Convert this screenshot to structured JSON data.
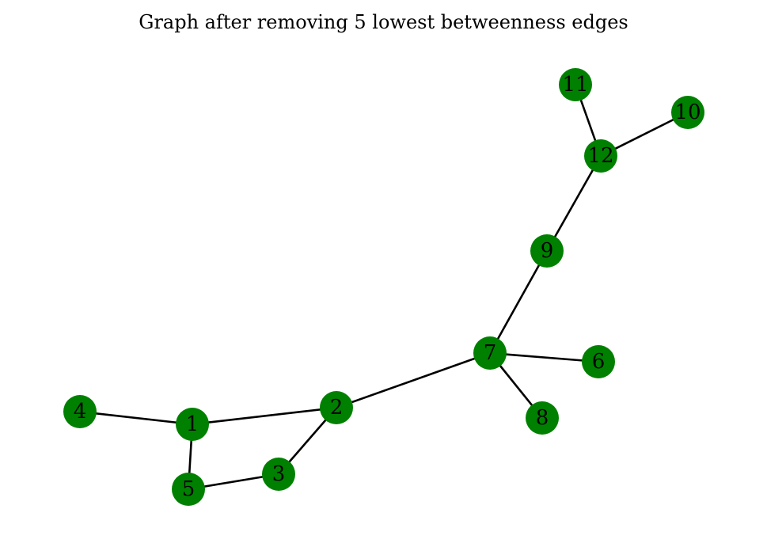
{
  "title": "Graph after removing 5 lowest betweenness edges",
  "colors": {
    "node_fill": "#008000",
    "edge": "#000000",
    "label": "#000000"
  },
  "nodes": [
    {
      "id": "1",
      "label": "1"
    },
    {
      "id": "2",
      "label": "2"
    },
    {
      "id": "3",
      "label": "3"
    },
    {
      "id": "4",
      "label": "4"
    },
    {
      "id": "5",
      "label": "5"
    },
    {
      "id": "6",
      "label": "6"
    },
    {
      "id": "7",
      "label": "7"
    },
    {
      "id": "8",
      "label": "8"
    },
    {
      "id": "9",
      "label": "9"
    },
    {
      "id": "10",
      "label": "10"
    },
    {
      "id": "11",
      "label": "11"
    },
    {
      "id": "12",
      "label": "12"
    }
  ],
  "edges": [
    [
      "4",
      "1"
    ],
    [
      "1",
      "2"
    ],
    [
      "1",
      "5"
    ],
    [
      "5",
      "3"
    ],
    [
      "3",
      "2"
    ],
    [
      "2",
      "7"
    ],
    [
      "7",
      "6"
    ],
    [
      "7",
      "8"
    ],
    [
      "7",
      "9"
    ],
    [
      "9",
      "12"
    ],
    [
      "12",
      "11"
    ],
    [
      "12",
      "10"
    ]
  ]
}
